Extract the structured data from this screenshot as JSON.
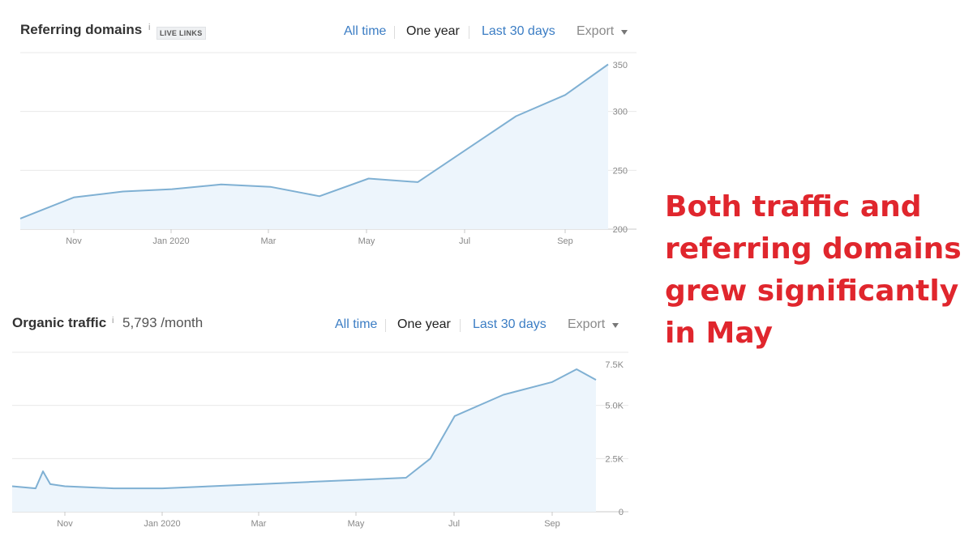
{
  "panels": {
    "referring": {
      "title": "Referring domains",
      "info": "i",
      "badge": "LIVE LINKS",
      "tabs": {
        "all_time": "All time",
        "one_year": "One year",
        "last_30": "Last 30 days",
        "export": "Export"
      }
    },
    "organic": {
      "title": "Organic traffic",
      "info": "i",
      "value": "5,793 /month",
      "tabs": {
        "all_time": "All time",
        "one_year": "One year",
        "last_30": "Last 30 days",
        "export": "Export"
      }
    }
  },
  "annotation": {
    "text": "Both traffic and referring domains grew significantly in May",
    "color": "#e0262d"
  },
  "chart_data": [
    {
      "type": "area",
      "title": "Referring domains",
      "x_ticks": [
        "Nov",
        "Jan 2020",
        "Mar",
        "May",
        "Jul",
        "Sep"
      ],
      "y_ticks": [
        "350",
        "300",
        "250",
        "200"
      ],
      "ylim": [
        200,
        350
      ],
      "grid": true,
      "line_color": "#7fb0d3",
      "fill_color": "#edf5fc",
      "x": [
        0,
        1,
        2,
        3,
        4,
        5,
        6,
        7,
        8,
        9,
        10,
        11,
        12
      ],
      "x_unit": "months since Oct 2019",
      "series": [
        {
          "values": [
            209,
            227,
            232,
            234,
            238,
            236,
            228,
            243,
            240,
            268,
            296,
            314,
            340
          ]
        }
      ]
    },
    {
      "type": "area",
      "title": "Organic traffic",
      "x_ticks": [
        "Nov",
        "Jan 2020",
        "Mar",
        "May",
        "Jul",
        "Sep"
      ],
      "y_ticks": [
        "7.5K",
        "5.0K",
        "2.5K",
        "0"
      ],
      "ylim": [
        0,
        7500
      ],
      "grid": true,
      "line_color": "#7fb0d3",
      "fill_color": "#edf5fc",
      "x": [
        0,
        0.4,
        0.55,
        0.7,
        1,
        2,
        3,
        4,
        5,
        6,
        7,
        8,
        8.5,
        9,
        10,
        11,
        11.5,
        11.9
      ],
      "x_unit": "months since Oct 2019",
      "series": [
        {
          "values": [
            1200,
            1100,
            1900,
            1300,
            1200,
            1100,
            1100,
            1200,
            1300,
            1400,
            1500,
            1600,
            2500,
            4500,
            5500,
            6100,
            6700,
            6200
          ]
        }
      ]
    }
  ]
}
